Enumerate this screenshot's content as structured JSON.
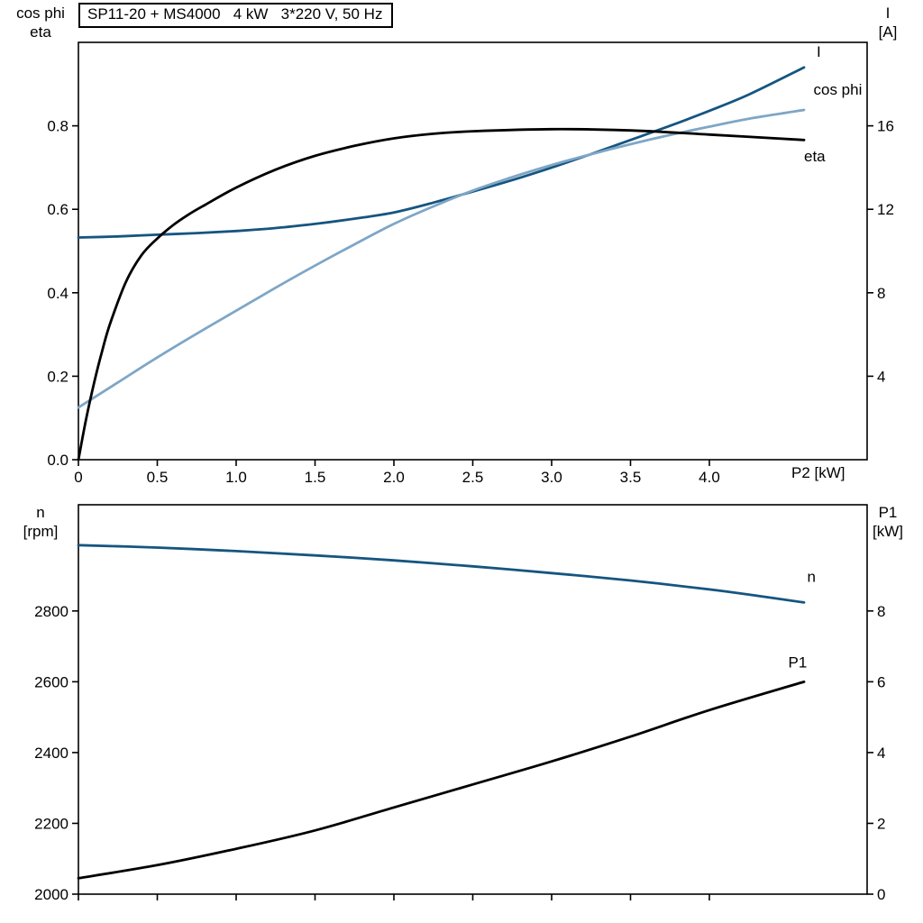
{
  "colors": {
    "dark_blue": "#155580",
    "light_blue": "#7ea6c6",
    "black": "#000000"
  },
  "chart_data": [
    {
      "id": "motor-electrical",
      "type": "line",
      "title": "SP11-20 + MS4000   4 kW   3*220 V, 50 Hz",
      "x": {
        "label": "P2 [kW]",
        "range": [
          0,
          5
        ],
        "ticks": [
          0,
          0.5,
          1.0,
          1.5,
          2.0,
          2.5,
          3.0,
          3.5,
          4.0
        ],
        "tick_labels": [
          "0",
          "0.5",
          "1.0",
          "1.5",
          "2.0",
          "2.5",
          "3.0",
          "3.5",
          "4.0"
        ]
      },
      "left_axis": {
        "title_line1": "cos phi",
        "title_line2": "eta",
        "range": [
          0,
          1.0
        ],
        "ticks": [
          0.0,
          0.2,
          0.4,
          0.6,
          0.8
        ],
        "tick_labels": [
          "0.0",
          "0.2",
          "0.4",
          "0.6",
          "0.8"
        ]
      },
      "right_axis": {
        "title_line1": "I",
        "title_line2": "[A]",
        "range": [
          0,
          20
        ],
        "ticks": [
          4,
          8,
          12,
          16
        ],
        "tick_labels": [
          "4",
          "8",
          "12",
          "16"
        ]
      },
      "grid": false,
      "series": [
        {
          "name": "I",
          "axis": "right",
          "color": "#155580",
          "label_pos": [
            4.68,
            19.3
          ],
          "x": [
            0,
            0.25,
            0.5,
            0.75,
            1.0,
            1.25,
            1.5,
            1.75,
            2.0,
            2.25,
            2.5,
            2.75,
            3.0,
            3.25,
            3.5,
            3.75,
            4.0,
            4.25,
            4.6
          ],
          "values": [
            10.65,
            10.7,
            10.78,
            10.86,
            10.96,
            11.1,
            11.3,
            11.55,
            11.85,
            12.32,
            12.85,
            13.4,
            14.0,
            14.65,
            15.32,
            16.0,
            16.72,
            17.5,
            18.8
          ]
        },
        {
          "name": "cos phi",
          "axis": "left",
          "color": "#7ea6c6",
          "label_pos": [
            4.66,
            0.875
          ],
          "x": [
            0,
            0.25,
            0.5,
            0.75,
            1.0,
            1.25,
            1.5,
            1.75,
            2.0,
            2.25,
            2.5,
            2.75,
            3.0,
            3.25,
            3.5,
            3.75,
            4.0,
            4.25,
            4.6
          ],
          "values": [
            0.125,
            0.185,
            0.245,
            0.302,
            0.357,
            0.412,
            0.465,
            0.516,
            0.565,
            0.607,
            0.645,
            0.677,
            0.706,
            0.732,
            0.756,
            0.778,
            0.798,
            0.817,
            0.838
          ]
        },
        {
          "name": "eta",
          "axis": "left",
          "color": "#000000",
          "label_pos": [
            4.6,
            0.715
          ],
          "x": [
            0,
            0.05,
            0.1,
            0.15,
            0.2,
            0.3,
            0.4,
            0.5,
            0.6,
            0.7,
            0.8,
            1.0,
            1.25,
            1.5,
            1.75,
            2.0,
            2.25,
            2.5,
            3.0,
            3.5,
            4.0,
            4.6
          ],
          "values": [
            0,
            0.1,
            0.185,
            0.26,
            0.325,
            0.425,
            0.49,
            0.53,
            0.562,
            0.588,
            0.61,
            0.652,
            0.695,
            0.728,
            0.752,
            0.77,
            0.781,
            0.787,
            0.792,
            0.789,
            0.779,
            0.766
          ]
        }
      ]
    },
    {
      "id": "speed-input-power",
      "type": "line",
      "title": "",
      "x": {
        "label": "",
        "range": [
          0,
          5
        ],
        "ticks": [
          0,
          0.5,
          1.0,
          1.5,
          2.0,
          2.5,
          3.0,
          3.5,
          4.0
        ],
        "tick_labels": []
      },
      "left_axis": {
        "title_line1": "n",
        "title_line2": "[rpm]",
        "range": [
          2000,
          3100
        ],
        "ticks": [
          2000,
          2200,
          2400,
          2600,
          2800
        ],
        "tick_labels": [
          "2000",
          "2200",
          "2400",
          "2600",
          "2800"
        ]
      },
      "right_axis": {
        "title_line1": "P1",
        "title_line2": "[kW]",
        "range": [
          0,
          11
        ],
        "ticks": [
          0,
          2,
          4,
          6,
          8
        ],
        "tick_labels": [
          "0",
          "2",
          "4",
          "6",
          "8"
        ]
      },
      "grid": false,
      "series": [
        {
          "name": "n",
          "axis": "left",
          "color": "#155580",
          "label_pos": [
            4.62,
            2882
          ],
          "x": [
            0,
            0.5,
            1.0,
            1.5,
            2.0,
            2.5,
            3.0,
            3.5,
            4.0,
            4.3,
            4.6
          ],
          "values": [
            2986,
            2979,
            2969,
            2957,
            2943,
            2926,
            2907,
            2886,
            2861,
            2843,
            2824
          ]
        },
        {
          "name": "P1",
          "axis": "right",
          "color": "#000000",
          "label_pos": [
            4.5,
            6.4
          ],
          "x": [
            0,
            0.5,
            1.0,
            1.5,
            2.0,
            2.5,
            3.0,
            3.5,
            4.0,
            4.6
          ],
          "values": [
            0.45,
            0.82,
            1.28,
            1.8,
            2.45,
            3.1,
            3.75,
            4.45,
            5.2,
            6.0
          ]
        }
      ]
    }
  ]
}
